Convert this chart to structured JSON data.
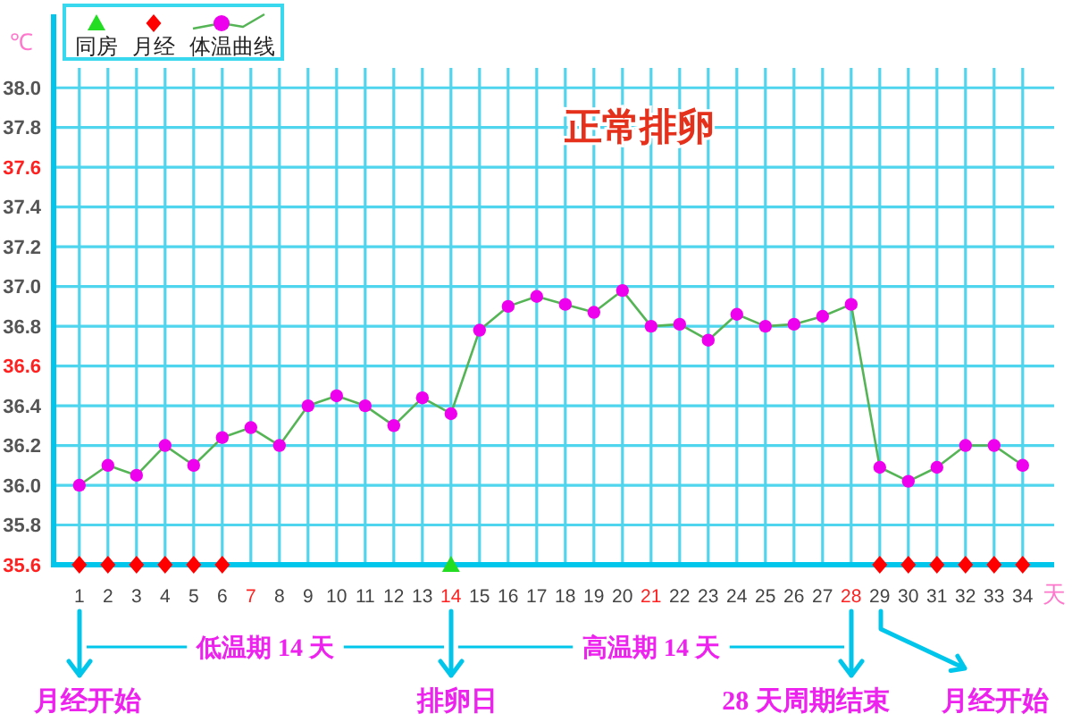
{
  "chart_data": {
    "type": "line",
    "title": "正常排卵",
    "xlabel": "天",
    "ylabel": "℃",
    "x": [
      1,
      2,
      3,
      4,
      5,
      6,
      7,
      8,
      9,
      10,
      11,
      12,
      13,
      14,
      15,
      16,
      17,
      18,
      19,
      20,
      21,
      22,
      23,
      24,
      25,
      26,
      27,
      28,
      29,
      30,
      31,
      32,
      33,
      34
    ],
    "xlim": [
      0.1,
      35.1
    ],
    "xticks": [
      1,
      2,
      3,
      4,
      5,
      6,
      7,
      8,
      9,
      10,
      11,
      12,
      13,
      14,
      15,
      16,
      17,
      18,
      19,
      20,
      21,
      22,
      23,
      24,
      25,
      26,
      27,
      28,
      29,
      30,
      31,
      32,
      33,
      34
    ],
    "ylim": [
      35.6,
      38.1
    ],
    "yticks": [
      35.6,
      35.8,
      {
        "value": 36,
        "label": "36.0"
      },
      36.2,
      36.4,
      36.6,
      36.8,
      {
        "value": 37,
        "label": "37.0"
      },
      37.2,
      37.4,
      37.6,
      37.8,
      {
        "value": 38,
        "label": "38.0"
      }
    ],
    "grid": true,
    "legend": "top left",
    "series": [
      {
        "name": "同房",
        "type": "scatter",
        "marker": "triangle",
        "color": "#22dd22",
        "x": [
          14
        ],
        "values": [
          35.6
        ]
      },
      {
        "name": "月经",
        "type": "scatter",
        "marker": "diamond",
        "color": "#ff0000",
        "x": [
          1,
          2,
          3,
          4,
          5,
          6,
          29,
          30,
          31,
          32,
          33,
          34
        ],
        "values": [
          35.6,
          35.6,
          35.6,
          35.6,
          35.6,
          35.6,
          35.6,
          35.6,
          35.6,
          35.6,
          35.6,
          35.6
        ]
      },
      {
        "name": "体温曲线",
        "marker": "circle",
        "color": "#55b455",
        "colors": [
          "#ee00ee",
          "#ee00ee",
          "#ee00ee",
          "#ee00ee",
          "#ee00ee",
          "#ee00ee",
          "#ee00ee",
          "#ee00ee",
          "#ee00ee",
          "#ee00ee",
          "#ee00ee",
          "#ee00ee",
          "#ee00ee",
          "#ee00ee",
          "#ee00ee",
          "#ee00ee",
          "#ee00ee",
          "#ee00ee",
          "#ee00ee",
          "#ee00ee",
          "#ee00ee",
          "#ee00ee",
          "#ee00ee",
          "#ee00ee",
          "#ee00ee",
          "#ee00ee",
          "#ee00ee",
          "#ee00ee",
          "#ee00ee",
          "#ee00ee",
          "#ee00ee",
          "#ee00ee",
          "#ee00ee",
          "#ee00ee"
        ],
        "values": [
          36.0,
          36.1,
          36.05,
          36.2,
          36.1,
          36.24,
          36.29,
          36.2,
          36.4,
          36.45,
          36.4,
          36.3,
          36.44,
          36.36,
          36.78,
          36.9,
          36.95,
          36.91,
          36.87,
          36.98,
          36.8,
          36.81,
          36.73,
          36.86,
          36.8,
          36.81,
          36.85,
          36.91,
          36.09,
          36.02,
          36.09,
          36.2,
          36.2,
          36.1
        ]
      }
    ],
    "annotations": [
      "月经开始",
      "低温期 14 天",
      "排卵日",
      "高温期 14 天",
      "28 天周期结束",
      "月经开始"
    ]
  }
}
